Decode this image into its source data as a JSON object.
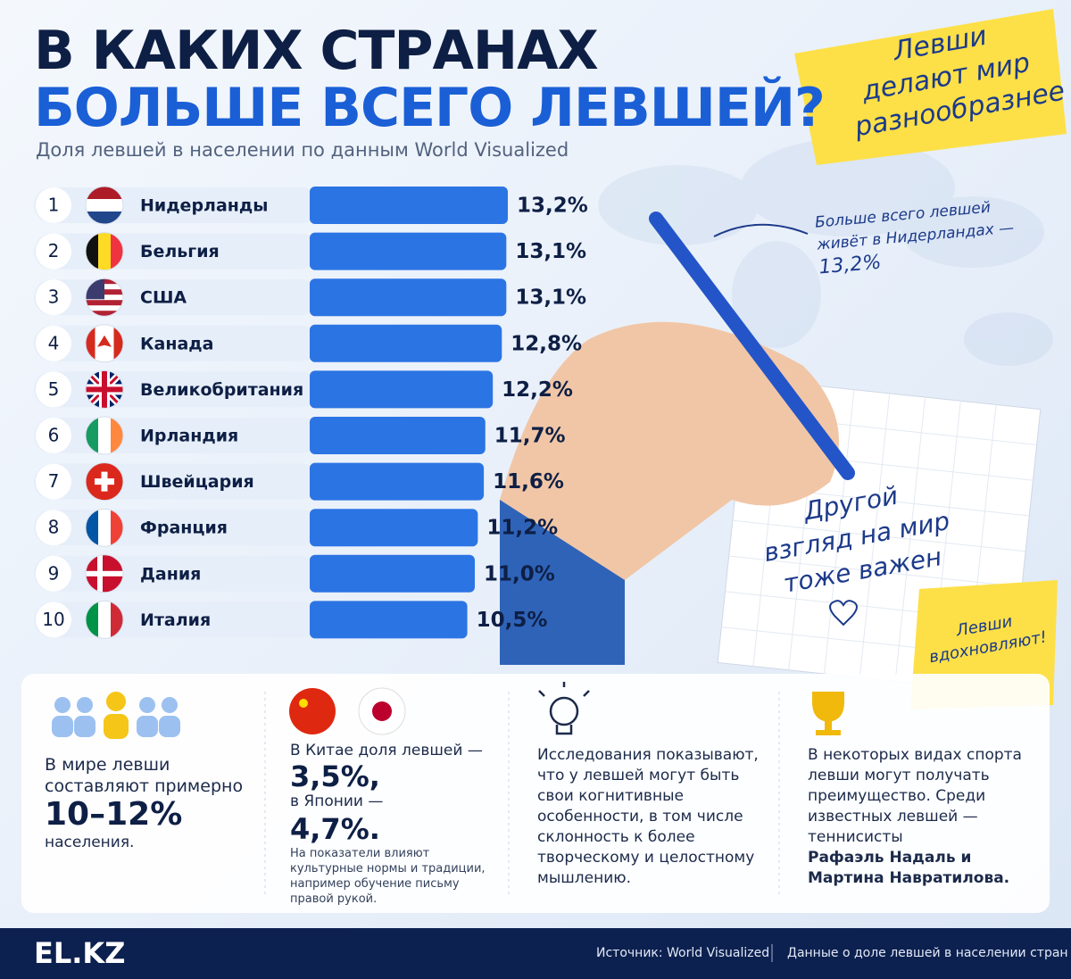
{
  "header": {
    "title_line1": "В КАКИХ СТРАНАХ",
    "title_line2": "БОЛЬШЕ ВСЕГО ЛЕВШЕЙ?",
    "subtitle": "Доля левшей в населении по данным World Visualized"
  },
  "chart_data": {
    "type": "hbar",
    "ranks": [
      1,
      2,
      3,
      4,
      5,
      6,
      7,
      8,
      9,
      10
    ],
    "categories": [
      "Нидерланды",
      "Бельгия",
      "США",
      "Канада",
      "Великобритания",
      "Ирландия",
      "Швейцария",
      "Франция",
      "Дания",
      "Италия"
    ],
    "values": [
      13.2,
      13.1,
      13.1,
      12.8,
      12.2,
      11.7,
      11.6,
      11.2,
      11.0,
      10.5
    ],
    "value_labels": [
      "13,2%",
      "13,1%",
      "13,1%",
      "12,8%",
      "12,2%",
      "11,7%",
      "11,6%",
      "11,2%",
      "11,0%",
      "10,5%"
    ],
    "color": "#2b74e4"
  },
  "notes": {
    "sticker": [
      "Левши",
      "делают мир",
      "разнообразнее"
    ],
    "annotation": [
      "Больше всего левшей",
      "живёт в Нидерландах —",
      "13,2%"
    ],
    "notebook": [
      "Другой",
      "взгляд на мир",
      "тоже важен"
    ],
    "sticky": [
      "Левши",
      "вдохновляют!"
    ]
  },
  "panels": [
    {
      "text": "В мире левши составляют примерно",
      "big": "10–12%",
      "tail": "населения."
    },
    {
      "line1": "В Китае доля левшей —",
      "big1": "3,5%,",
      "line2": "в Японии —",
      "big2": "4,7%.",
      "small": "На показатели влияют культурные нормы и традиции, например обучение письму правой рукой."
    },
    {
      "text": "Исследования показывают, что у левшей могут быть свои когнитивные особенности, в том числе склонность к более творческому и целостному мышлению."
    },
    {
      "text": "В некоторых видах спорта левши могут получать преимущество. Среди известных левшей — теннисисты",
      "bold": "Рафаэль Надаль и Мартина Навратилова."
    }
  ],
  "footer": {
    "logo": "EL.KZ",
    "source": "Источник: World Visualized",
    "description": "Данные о доле левшей в населении стран"
  }
}
